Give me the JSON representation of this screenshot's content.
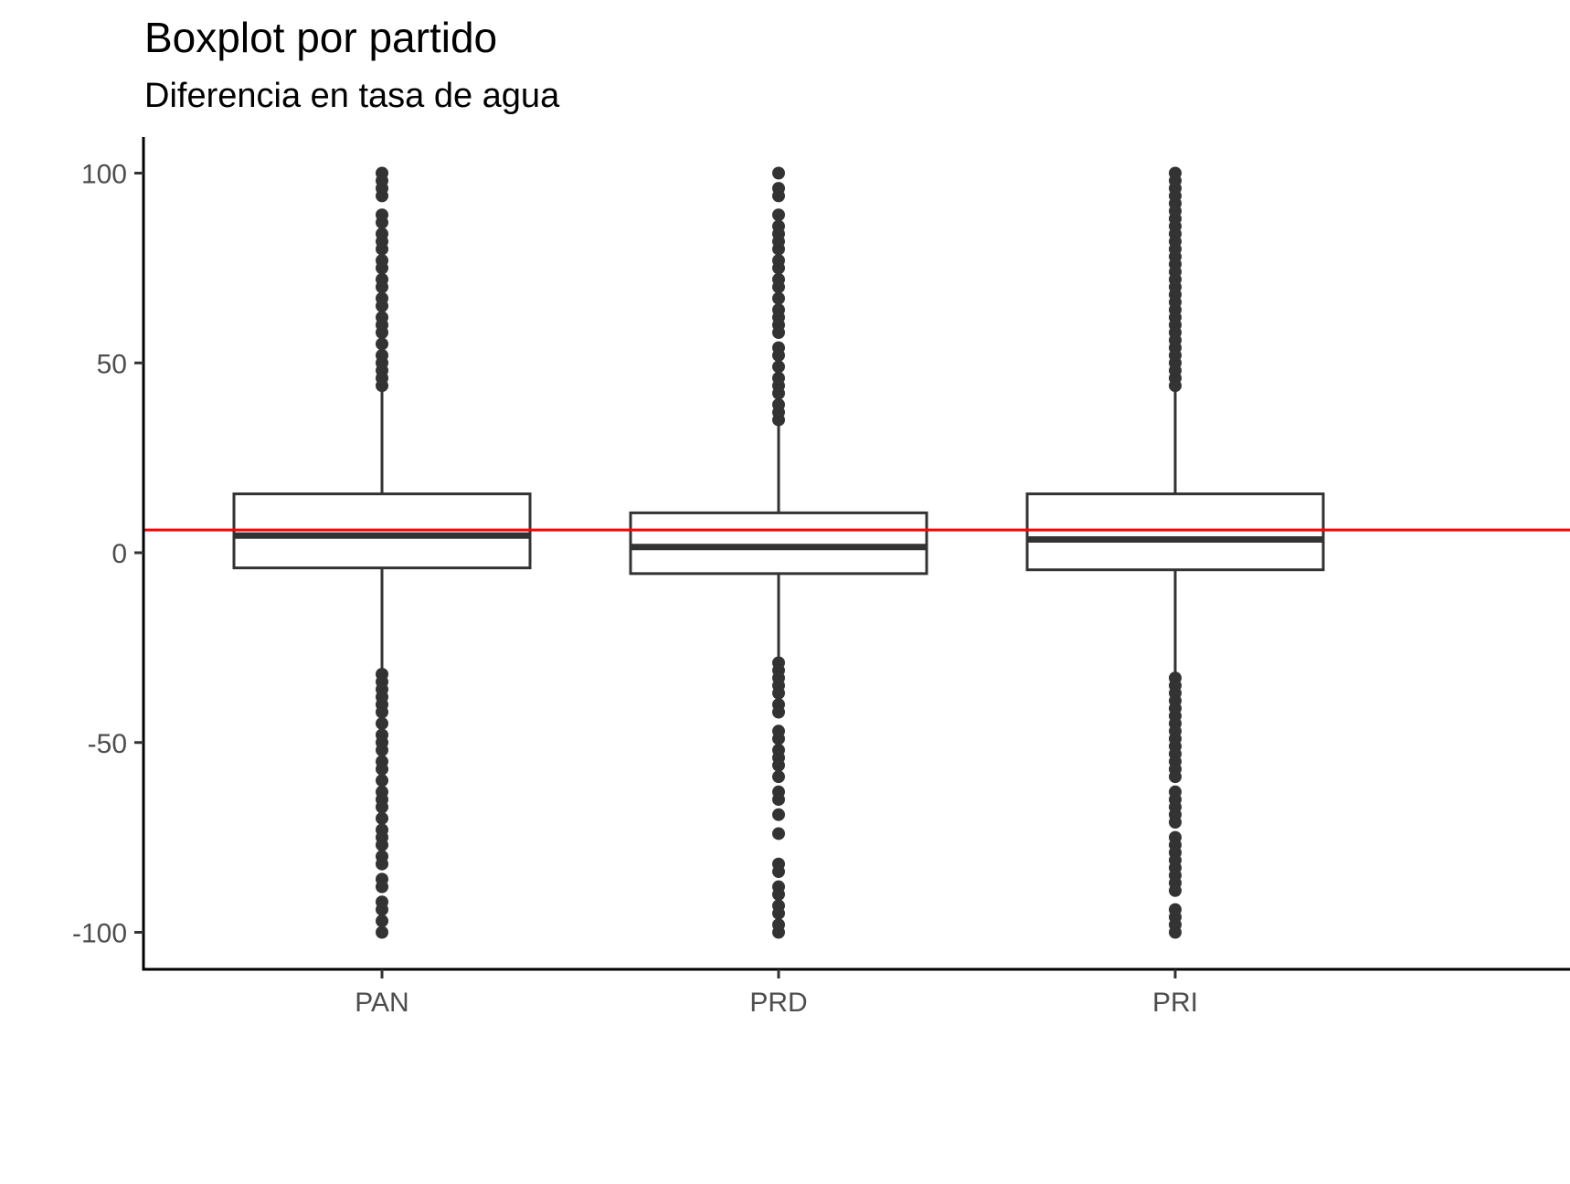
{
  "chart_data": {
    "type": "boxplot",
    "title": "Boxplot por partido",
    "subtitle": "Diferencia en tasa de agua",
    "xlabel": "",
    "ylabel": "",
    "categories": [
      "PAN",
      "PRD",
      "PRI"
    ],
    "ylim": [
      -110,
      110
    ],
    "yticks": [
      100,
      50,
      0,
      -50,
      -100
    ],
    "ytick_labels": [
      "100",
      "50",
      "0",
      "-50",
      "-100"
    ],
    "reference_line": {
      "y": 6,
      "color": "#ff0000"
    },
    "boxes": [
      {
        "name": "PAN",
        "q1": -4,
        "median": 4.5,
        "q3": 15.5,
        "whisker_low": -32,
        "whisker_high": 44,
        "outliers_high": [
          44,
          46,
          48,
          50,
          52,
          55,
          58,
          60,
          62,
          65,
          67,
          70,
          72,
          75,
          77,
          80,
          82,
          84,
          87,
          89,
          94,
          96,
          98,
          100
        ],
        "outliers_low": [
          -32,
          -34,
          -36,
          -38,
          -40,
          -42,
          -45,
          -48,
          -50,
          -52,
          -55,
          -57,
          -60,
          -63,
          -65,
          -67,
          -70,
          -73,
          -75,
          -77,
          -80,
          -82,
          -86,
          -88,
          -92,
          -94,
          -97,
          -100
        ]
      },
      {
        "name": "PRD",
        "q1": -5.5,
        "median": 1.5,
        "q3": 10.5,
        "whisker_low": -29,
        "whisker_high": 35,
        "outliers_high": [
          35,
          37,
          39,
          42,
          44,
          46,
          49,
          52,
          54,
          58,
          60,
          62,
          64,
          67,
          70,
          72,
          75,
          77,
          80,
          82,
          84,
          86,
          89,
          94,
          96,
          100
        ],
        "outliers_low": [
          -29,
          -31,
          -33,
          -35,
          -37,
          -40,
          -42,
          -47,
          -49,
          -52,
          -54,
          -56,
          -59,
          -63,
          -65,
          -69,
          -74,
          -82,
          -84,
          -88,
          -90,
          -93,
          -95,
          -98,
          -100
        ]
      },
      {
        "name": "PRI",
        "q1": -4.5,
        "median": 3.5,
        "q3": 15.5,
        "whisker_low": -33,
        "whisker_high": 44,
        "outliers_high": [
          44,
          46,
          48,
          50,
          52,
          54,
          56,
          58,
          60,
          62,
          64,
          66,
          68,
          70,
          72,
          74,
          76,
          78,
          80,
          82,
          84,
          86,
          88,
          90,
          92,
          94,
          96,
          98,
          100
        ],
        "outliers_low": [
          -33,
          -35,
          -37,
          -39,
          -41,
          -43,
          -45,
          -47,
          -49,
          -51,
          -53,
          -55,
          -57,
          -59,
          -63,
          -65,
          -67,
          -69,
          -71,
          -75,
          -77,
          -79,
          -81,
          -83,
          -85,
          -87,
          -89,
          -94,
          -96,
          -98,
          -100
        ]
      }
    ],
    "colors": {
      "box": "#333333",
      "points": "#333333",
      "axis": "#000000",
      "tick_text": "#4d4d4d",
      "reference": "#ff0000"
    },
    "grid": false
  }
}
